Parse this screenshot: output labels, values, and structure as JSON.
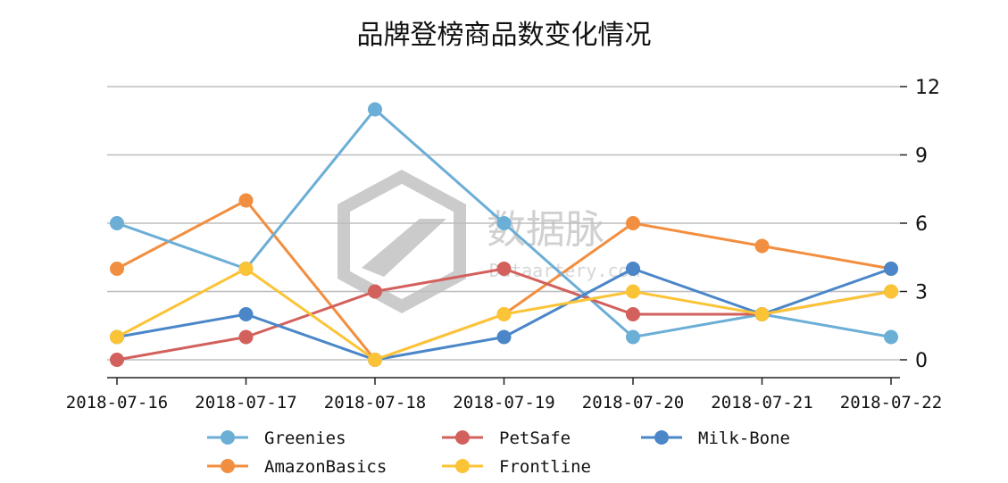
{
  "chart_data": {
    "type": "line",
    "title": "品牌登榜商品数变化情况",
    "categories": [
      "2018-07-16",
      "2018-07-17",
      "2018-07-18",
      "2018-07-19",
      "2018-07-20",
      "2018-07-21",
      "2018-07-22"
    ],
    "y_ticks": [
      0,
      3,
      6,
      9,
      12
    ],
    "ylim": [
      -0.8,
      12
    ],
    "y_axis_side": "right",
    "grid": "horizontal",
    "legend_position": "bottom",
    "series": [
      {
        "name": "Greenies",
        "color": "#6baed6",
        "values": [
          6,
          4,
          11,
          6,
          1,
          2,
          1
        ]
      },
      {
        "name": "AmazonBasics",
        "color": "#f28e3f",
        "values": [
          4,
          7,
          0,
          2,
          6,
          5,
          4
        ]
      },
      {
        "name": "PetSafe",
        "color": "#d2605c",
        "values": [
          0,
          1,
          3,
          4,
          2,
          2,
          3
        ]
      },
      {
        "name": "Frontline",
        "color": "#fbc437",
        "values": [
          1,
          4,
          0,
          2,
          3,
          2,
          3
        ]
      },
      {
        "name": "Milk-Bone",
        "color": "#4a86c8",
        "values": [
          1,
          2,
          0,
          1,
          4,
          2,
          4
        ]
      }
    ],
    "draw_order": [
      1,
      0,
      2,
      4,
      3
    ],
    "legend_order": [
      0,
      2,
      4,
      1,
      3
    ]
  },
  "watermark": {
    "text": "数据脉",
    "subtext": "Dataartery.com"
  }
}
